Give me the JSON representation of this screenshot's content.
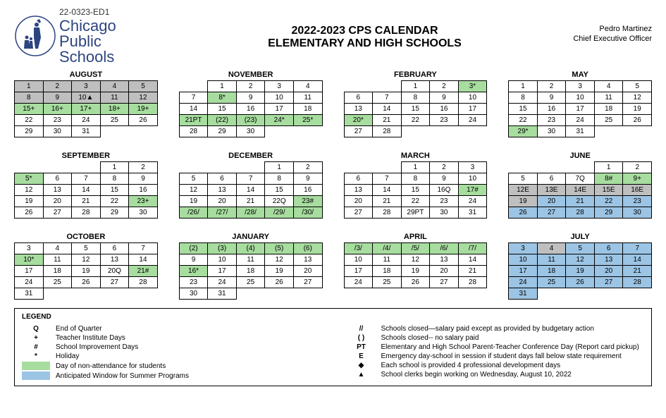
{
  "doc_id": "22-0323-ED1",
  "org": {
    "l1": "Chicago",
    "l2": "Public",
    "l3": "Schools"
  },
  "title1": "2022-2023 CPS CALENDAR",
  "title2": "ELEMENTARY AND HIGH SCHOOLS",
  "officer": {
    "name": "Pedro Martinez",
    "role": "Chief Executive Officer"
  },
  "colors": {
    "gray": "#bfbfbf",
    "green": "#a7dd9f",
    "blue": "#9cc4e4",
    "brand": "#2c4480"
  },
  "months": [
    {
      "name": "AUGUST",
      "rows": [
        [
          {
            "t": "1",
            "c": "gray"
          },
          {
            "t": "2",
            "c": "gray"
          },
          {
            "t": "3",
            "c": "gray"
          },
          {
            "t": "4",
            "c": "gray"
          },
          {
            "t": "5",
            "c": "gray"
          }
        ],
        [
          {
            "t": "8",
            "c": "gray"
          },
          {
            "t": "9",
            "c": "gray"
          },
          {
            "t": "10▲",
            "c": "gray"
          },
          {
            "t": "11",
            "c": "gray"
          },
          {
            "t": "12",
            "c": "gray"
          }
        ],
        [
          {
            "t": "15+",
            "c": "green"
          },
          {
            "t": "16+",
            "c": "green"
          },
          {
            "t": "17+",
            "c": "green"
          },
          {
            "t": "18+",
            "c": "green"
          },
          {
            "t": "19+",
            "c": "green"
          }
        ],
        [
          {
            "t": "22"
          },
          {
            "t": "23"
          },
          {
            "t": "24"
          },
          {
            "t": "25"
          },
          {
            "t": "26"
          }
        ],
        [
          {
            "t": "29"
          },
          {
            "t": "30"
          },
          {
            "t": "31"
          },
          {
            "e": true
          },
          {
            "e": true
          }
        ]
      ]
    },
    {
      "name": "NOVEMBER",
      "rows": [
        [
          {
            "e": true
          },
          {
            "t": "1"
          },
          {
            "t": "2"
          },
          {
            "t": "3"
          },
          {
            "t": "4"
          }
        ],
        [
          {
            "t": "7"
          },
          {
            "t": "8*",
            "c": "green"
          },
          {
            "t": "9"
          },
          {
            "t": "10"
          },
          {
            "t": "11"
          }
        ],
        [
          {
            "t": "14"
          },
          {
            "t": "15"
          },
          {
            "t": "16"
          },
          {
            "t": "17"
          },
          {
            "t": "18"
          }
        ],
        [
          {
            "t": "21PT",
            "c": "green"
          },
          {
            "t": "(22)",
            "c": "green"
          },
          {
            "t": "(23)",
            "c": "green"
          },
          {
            "t": "24*",
            "c": "green"
          },
          {
            "t": "25*",
            "c": "green"
          }
        ],
        [
          {
            "t": "28"
          },
          {
            "t": "29"
          },
          {
            "t": "30"
          },
          {
            "e": true
          },
          {
            "e": true
          }
        ]
      ]
    },
    {
      "name": "FEBRUARY",
      "rows": [
        [
          {
            "e": true
          },
          {
            "e": true
          },
          {
            "t": "1"
          },
          {
            "t": "2"
          },
          {
            "t": "3*",
            "c": "green"
          }
        ],
        [
          {
            "t": "6"
          },
          {
            "t": "7"
          },
          {
            "t": "8"
          },
          {
            "t": "9"
          },
          {
            "t": "10"
          }
        ],
        [
          {
            "t": "13"
          },
          {
            "t": "14"
          },
          {
            "t": "15"
          },
          {
            "t": "16"
          },
          {
            "t": "17"
          }
        ],
        [
          {
            "t": "20*",
            "c": "green"
          },
          {
            "t": "21"
          },
          {
            "t": "22"
          },
          {
            "t": "23"
          },
          {
            "t": "24"
          }
        ],
        [
          {
            "t": "27"
          },
          {
            "t": "28"
          },
          {
            "e": true
          },
          {
            "e": true
          },
          {
            "e": true
          }
        ]
      ]
    },
    {
      "name": "MAY",
      "rows": [
        [
          {
            "t": "1"
          },
          {
            "t": "2"
          },
          {
            "t": "3"
          },
          {
            "t": "4"
          },
          {
            "t": "5"
          }
        ],
        [
          {
            "t": "8"
          },
          {
            "t": "9"
          },
          {
            "t": "10"
          },
          {
            "t": "11"
          },
          {
            "t": "12"
          }
        ],
        [
          {
            "t": "15"
          },
          {
            "t": "16"
          },
          {
            "t": "17"
          },
          {
            "t": "18"
          },
          {
            "t": "19"
          }
        ],
        [
          {
            "t": "22"
          },
          {
            "t": "23"
          },
          {
            "t": "24"
          },
          {
            "t": "25"
          },
          {
            "t": "26"
          }
        ],
        [
          {
            "t": "29*",
            "c": "green"
          },
          {
            "t": "30"
          },
          {
            "t": "31"
          },
          {
            "e": true
          },
          {
            "e": true
          }
        ]
      ]
    },
    {
      "name": "SEPTEMBER",
      "rows": [
        [
          {
            "e": true
          },
          {
            "e": true
          },
          {
            "e": true
          },
          {
            "t": "1"
          },
          {
            "t": "2"
          }
        ],
        [
          {
            "t": "5*",
            "c": "green"
          },
          {
            "t": "6"
          },
          {
            "t": "7"
          },
          {
            "t": "8"
          },
          {
            "t": "9"
          }
        ],
        [
          {
            "t": "12"
          },
          {
            "t": "13"
          },
          {
            "t": "14"
          },
          {
            "t": "15"
          },
          {
            "t": "16"
          }
        ],
        [
          {
            "t": "19"
          },
          {
            "t": "20"
          },
          {
            "t": "21"
          },
          {
            "t": "22"
          },
          {
            "t": "23+",
            "c": "green"
          }
        ],
        [
          {
            "t": "26"
          },
          {
            "t": "27"
          },
          {
            "t": "28"
          },
          {
            "t": "29"
          },
          {
            "t": "30"
          }
        ]
      ]
    },
    {
      "name": "DECEMBER",
      "rows": [
        [
          {
            "e": true
          },
          {
            "e": true
          },
          {
            "e": true
          },
          {
            "t": "1"
          },
          {
            "t": "2"
          }
        ],
        [
          {
            "t": "5"
          },
          {
            "t": "6"
          },
          {
            "t": "7"
          },
          {
            "t": "8"
          },
          {
            "t": "9"
          }
        ],
        [
          {
            "t": "12"
          },
          {
            "t": "13"
          },
          {
            "t": "14"
          },
          {
            "t": "15"
          },
          {
            "t": "16"
          }
        ],
        [
          {
            "t": "19"
          },
          {
            "t": "20"
          },
          {
            "t": "21"
          },
          {
            "t": "22Q"
          },
          {
            "t": "23#",
            "c": "green"
          }
        ],
        [
          {
            "t": "/26/",
            "c": "green"
          },
          {
            "t": "/27/",
            "c": "green"
          },
          {
            "t": "/28/",
            "c": "green"
          },
          {
            "t": "/29/",
            "c": "green"
          },
          {
            "t": "/30/",
            "c": "green"
          }
        ]
      ]
    },
    {
      "name": "MARCH",
      "rows": [
        [
          {
            "e": true
          },
          {
            "e": true
          },
          {
            "t": "1"
          },
          {
            "t": "2"
          },
          {
            "t": "3"
          }
        ],
        [
          {
            "t": "6"
          },
          {
            "t": "7"
          },
          {
            "t": "8"
          },
          {
            "t": "9"
          },
          {
            "t": "10"
          }
        ],
        [
          {
            "t": "13"
          },
          {
            "t": "14"
          },
          {
            "t": "15"
          },
          {
            "t": "16Q"
          },
          {
            "t": "17#",
            "c": "green"
          }
        ],
        [
          {
            "t": "20"
          },
          {
            "t": "21"
          },
          {
            "t": "22"
          },
          {
            "t": "23"
          },
          {
            "t": "24"
          }
        ],
        [
          {
            "t": "27"
          },
          {
            "t": "28"
          },
          {
            "t": "29PT"
          },
          {
            "t": "30"
          },
          {
            "t": "31"
          }
        ]
      ]
    },
    {
      "name": "JUNE",
      "rows": [
        [
          {
            "e": true
          },
          {
            "e": true
          },
          {
            "e": true
          },
          {
            "t": "1"
          },
          {
            "t": "2"
          }
        ],
        [
          {
            "t": "5"
          },
          {
            "t": "6"
          },
          {
            "t": "7Q"
          },
          {
            "t": "8#",
            "c": "green"
          },
          {
            "t": "9+",
            "c": "green"
          }
        ],
        [
          {
            "t": "12E",
            "c": "gray"
          },
          {
            "t": "13E",
            "c": "gray"
          },
          {
            "t": "14E",
            "c": "gray"
          },
          {
            "t": "15E",
            "c": "gray"
          },
          {
            "t": "16E",
            "c": "gray"
          }
        ],
        [
          {
            "t": "19",
            "c": "gray"
          },
          {
            "t": "20",
            "c": "blue"
          },
          {
            "t": "21",
            "c": "blue"
          },
          {
            "t": "22",
            "c": "blue"
          },
          {
            "t": "23",
            "c": "blue"
          }
        ],
        [
          {
            "t": "26",
            "c": "blue"
          },
          {
            "t": "27",
            "c": "blue"
          },
          {
            "t": "28",
            "c": "blue"
          },
          {
            "t": "29",
            "c": "blue"
          },
          {
            "t": "30",
            "c": "blue"
          }
        ]
      ]
    },
    {
      "name": "OCTOBER",
      "rows": [
        [
          {
            "t": "3"
          },
          {
            "t": "4"
          },
          {
            "t": "5"
          },
          {
            "t": "6"
          },
          {
            "t": "7"
          }
        ],
        [
          {
            "t": "10*",
            "c": "green"
          },
          {
            "t": "11"
          },
          {
            "t": "12"
          },
          {
            "t": "13"
          },
          {
            "t": "14"
          }
        ],
        [
          {
            "t": "17"
          },
          {
            "t": "18"
          },
          {
            "t": "19"
          },
          {
            "t": "20Q"
          },
          {
            "t": "21#",
            "c": "green"
          }
        ],
        [
          {
            "t": "24"
          },
          {
            "t": "25"
          },
          {
            "t": "26"
          },
          {
            "t": "27"
          },
          {
            "t": "28"
          }
        ],
        [
          {
            "t": "31"
          },
          {
            "e": true
          },
          {
            "e": true
          },
          {
            "e": true
          },
          {
            "e": true
          }
        ]
      ]
    },
    {
      "name": "JANUARY",
      "rows": [
        [
          {
            "t": "(2)",
            "c": "green"
          },
          {
            "t": "(3)",
            "c": "green"
          },
          {
            "t": "(4)",
            "c": "green"
          },
          {
            "t": "(5)",
            "c": "green"
          },
          {
            "t": "(6)",
            "c": "green"
          }
        ],
        [
          {
            "t": "9"
          },
          {
            "t": "10"
          },
          {
            "t": "11"
          },
          {
            "t": "12"
          },
          {
            "t": "13"
          }
        ],
        [
          {
            "t": "16*",
            "c": "green"
          },
          {
            "t": "17"
          },
          {
            "t": "18"
          },
          {
            "t": "19"
          },
          {
            "t": "20"
          }
        ],
        [
          {
            "t": "23"
          },
          {
            "t": "24"
          },
          {
            "t": "25"
          },
          {
            "t": "26"
          },
          {
            "t": "27"
          }
        ],
        [
          {
            "t": "30"
          },
          {
            "t": "31"
          },
          {
            "e": true
          },
          {
            "e": true
          },
          {
            "e": true
          }
        ]
      ]
    },
    {
      "name": "APRIL",
      "rows": [
        [
          {
            "t": "/3/",
            "c": "green"
          },
          {
            "t": "/4/",
            "c": "green"
          },
          {
            "t": "/5/",
            "c": "green"
          },
          {
            "t": "/6/",
            "c": "green"
          },
          {
            "t": "/7/",
            "c": "green"
          }
        ],
        [
          {
            "t": "10"
          },
          {
            "t": "11"
          },
          {
            "t": "12"
          },
          {
            "t": "13"
          },
          {
            "t": "14"
          }
        ],
        [
          {
            "t": "17"
          },
          {
            "t": "18"
          },
          {
            "t": "19"
          },
          {
            "t": "20"
          },
          {
            "t": "21"
          }
        ],
        [
          {
            "t": "24"
          },
          {
            "t": "25"
          },
          {
            "t": "26"
          },
          {
            "t": "27"
          },
          {
            "t": "28"
          }
        ],
        [
          {
            "e": true
          },
          {
            "e": true
          },
          {
            "e": true
          },
          {
            "e": true
          },
          {
            "e": true
          }
        ]
      ]
    },
    {
      "name": "JULY",
      "rows": [
        [
          {
            "t": "3",
            "c": "blue"
          },
          {
            "t": "4",
            "c": "gray"
          },
          {
            "t": "5",
            "c": "blue"
          },
          {
            "t": "6",
            "c": "blue"
          },
          {
            "t": "7",
            "c": "blue"
          }
        ],
        [
          {
            "t": "10",
            "c": "blue"
          },
          {
            "t": "11",
            "c": "blue"
          },
          {
            "t": "12",
            "c": "blue"
          },
          {
            "t": "13",
            "c": "blue"
          },
          {
            "t": "14",
            "c": "blue"
          }
        ],
        [
          {
            "t": "17",
            "c": "blue"
          },
          {
            "t": "18",
            "c": "blue"
          },
          {
            "t": "19",
            "c": "blue"
          },
          {
            "t": "20",
            "c": "blue"
          },
          {
            "t": "21",
            "c": "blue"
          }
        ],
        [
          {
            "t": "24",
            "c": "blue"
          },
          {
            "t": "25",
            "c": "blue"
          },
          {
            "t": "26",
            "c": "blue"
          },
          {
            "t": "27",
            "c": "blue"
          },
          {
            "t": "28",
            "c": "blue"
          }
        ],
        [
          {
            "t": "31",
            "c": "blue"
          },
          {
            "e": true
          },
          {
            "e": true
          },
          {
            "e": true
          },
          {
            "e": true
          }
        ]
      ]
    }
  ],
  "legend": {
    "title": "LEGEND",
    "left": [
      {
        "sym": "Q",
        "txt": "End of Quarter"
      },
      {
        "sym": "+",
        "txt": "Teacher Institute Days"
      },
      {
        "sym": "#",
        "txt": "School Improvement Days"
      },
      {
        "sym": "*",
        "txt": "Holiday"
      },
      {
        "sw": "green",
        "txt": "Day of non-attendance for students"
      },
      {
        "sw": "blue",
        "txt": "Anticipated Window for Summer Programs"
      }
    ],
    "right": [
      {
        "sym": "//",
        "txt": "Schools closed—salary paid except as provided by budgetary action"
      },
      {
        "sym": "( )",
        "txt": "Schools closed-- no salary paid"
      },
      {
        "sym": "PT",
        "txt": "Elementary and High School Parent-Teacher Conference Day (Report card pickup)"
      },
      {
        "sym": "E",
        "txt": "Emergency day-school in session if student days fall below state requirement"
      },
      {
        "sym": "◆",
        "txt": "Each school is provided 4 professional development days"
      },
      {
        "sym": "▲",
        "txt": "School clerks begin working on Wednesday, August 10, 2022"
      }
    ]
  }
}
